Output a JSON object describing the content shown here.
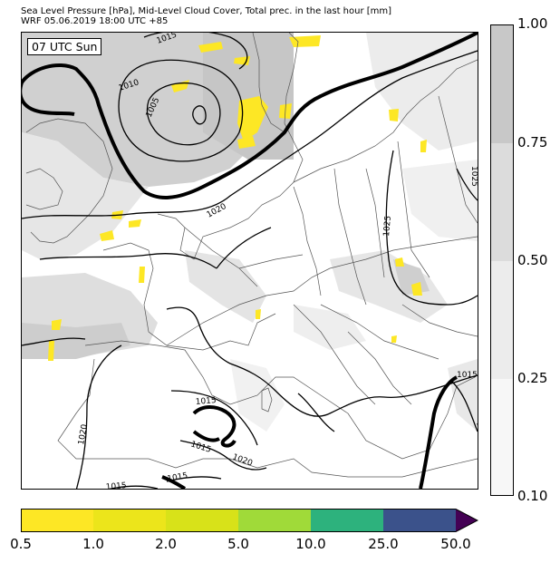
{
  "header": {
    "line1": "Sea Level Pressure [hPa], Mid-Level Cloud Cover, Total prec. in the last hour [mm]",
    "line2": "WRF 05.06.2019 18:00 UTC +85"
  },
  "map": {
    "time_label": "07 UTC Sun",
    "isobar_labels": [
      "1015",
      "1010",
      "1005",
      "1020",
      "1025",
      "1025",
      "1015",
      "1015",
      "1015",
      "1020",
      "1020",
      "1015",
      "1015",
      "1015"
    ]
  },
  "cloud_legend": {
    "ticks": [
      "1.00",
      "0.75",
      "0.50",
      "0.25",
      "0.10"
    ],
    "colors": [
      "#c8c8c8",
      "#dcdcdc",
      "#ececec",
      "#f7f7f7"
    ]
  },
  "precip_legend": {
    "ticks": [
      "0.5",
      "1.0",
      "2.0",
      "5.0",
      "10.0",
      "25.0",
      "50.0"
    ],
    "colors": [
      "#fde725",
      "#ece51b",
      "#d8e219",
      "#a0da39",
      "#2db27d",
      "#3b528b",
      "#440154"
    ]
  }
}
